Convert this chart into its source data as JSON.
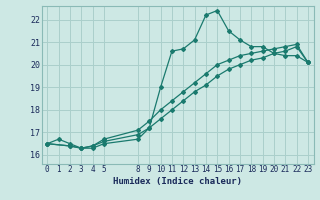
{
  "title": "",
  "xlabel": "Humidex (Indice chaleur)",
  "bg_color": "#cde8e4",
  "line_color": "#1a7a6e",
  "grid_color": "#aacfcb",
  "ylim": [
    15.6,
    22.6
  ],
  "xlim": [
    -0.5,
    23.5
  ],
  "yticks": [
    16,
    17,
    18,
    19,
    20,
    21,
    22
  ],
  "xticks": [
    0,
    1,
    2,
    3,
    4,
    5,
    8,
    9,
    10,
    11,
    12,
    13,
    14,
    15,
    16,
    17,
    18,
    19,
    20,
    21,
    22,
    23
  ],
  "line1_x": [
    0,
    1,
    2,
    3,
    4,
    5,
    8,
    9,
    10,
    11,
    12,
    13,
    14,
    15,
    16,
    17,
    18,
    19,
    20,
    21,
    22,
    23
  ],
  "line1_y": [
    16.5,
    16.7,
    16.5,
    16.3,
    16.3,
    16.5,
    16.7,
    17.2,
    19.0,
    20.6,
    20.7,
    21.1,
    22.2,
    22.4,
    21.5,
    21.1,
    20.8,
    20.8,
    20.5,
    20.4,
    20.4,
    20.1
  ],
  "line2_x": [
    0,
    2,
    3,
    4,
    5,
    8,
    9,
    10,
    11,
    12,
    13,
    14,
    15,
    16,
    17,
    18,
    19,
    20,
    21,
    22,
    23
  ],
  "line2_y": [
    16.5,
    16.4,
    16.3,
    16.4,
    16.7,
    17.1,
    17.5,
    18.0,
    18.4,
    18.8,
    19.2,
    19.6,
    20.0,
    20.2,
    20.4,
    20.5,
    20.6,
    20.7,
    20.8,
    20.9,
    20.1
  ],
  "line3_x": [
    0,
    2,
    3,
    4,
    5,
    8,
    9,
    10,
    11,
    12,
    13,
    14,
    15,
    16,
    17,
    18,
    19,
    20,
    21,
    22,
    23
  ],
  "line3_y": [
    16.5,
    16.4,
    16.3,
    16.4,
    16.6,
    16.9,
    17.2,
    17.6,
    18.0,
    18.4,
    18.8,
    19.1,
    19.5,
    19.8,
    20.0,
    20.2,
    20.3,
    20.5,
    20.6,
    20.8,
    20.1
  ],
  "tick_fontsize": 5.5,
  "xlabel_fontsize": 6.5,
  "marker_size": 2.0,
  "line_width": 0.9
}
